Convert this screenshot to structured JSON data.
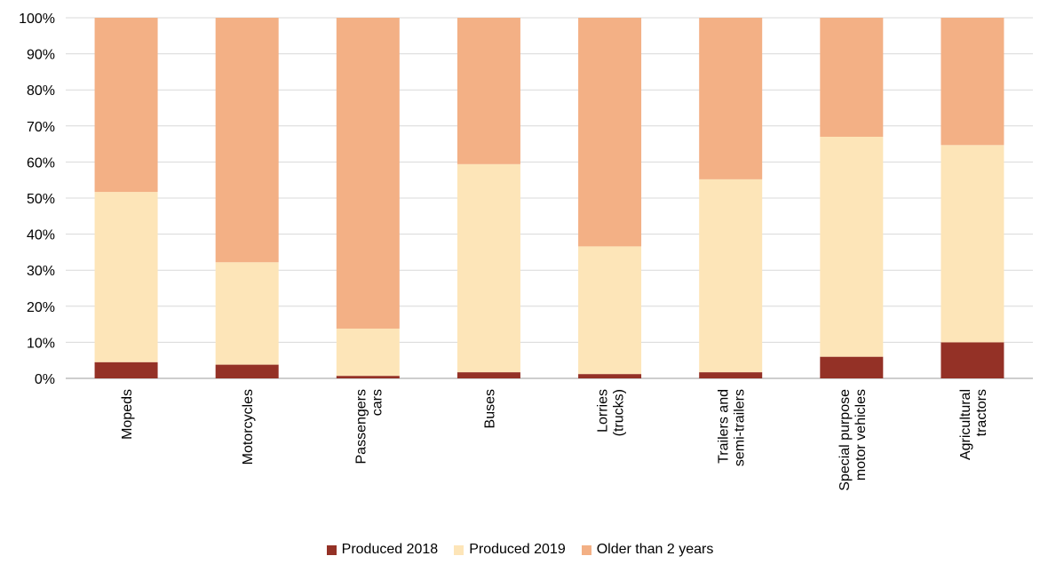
{
  "chart_data": {
    "type": "bar",
    "stacked": true,
    "percent": true,
    "categories": [
      [
        "Mopeds"
      ],
      [
        "Motorcycles"
      ],
      [
        "Passengers",
        "cars"
      ],
      [
        "Buses"
      ],
      [
        "Lorries",
        "(trucks)"
      ],
      [
        "Trailers and",
        "semi-trailers"
      ],
      [
        "Special purpose",
        "motor vehicles"
      ],
      [
        "Agricultural",
        "tractors"
      ]
    ],
    "series": [
      {
        "name": "Produced 2018",
        "color": "#943126",
        "values": [
          4.5,
          3.8,
          0.7,
          1.7,
          1.2,
          1.7,
          6.0,
          10.0
        ]
      },
      {
        "name": "Produced 2019",
        "color": "#FDE5B8",
        "values": [
          47.2,
          28.4,
          13.1,
          57.7,
          35.4,
          53.5,
          61.0,
          54.7
        ]
      },
      {
        "name": "Older than 2 years",
        "color": "#F3B085",
        "values": [
          48.3,
          67.8,
          86.2,
          40.6,
          63.4,
          44.8,
          33.0,
          35.3
        ]
      }
    ],
    "yticks": [
      "0%",
      "10%",
      "20%",
      "30%",
      "40%",
      "50%",
      "60%",
      "70%",
      "80%",
      "90%",
      "100%"
    ],
    "ylim": [
      0,
      100
    ],
    "grid": true,
    "legend_position": "bottom"
  }
}
